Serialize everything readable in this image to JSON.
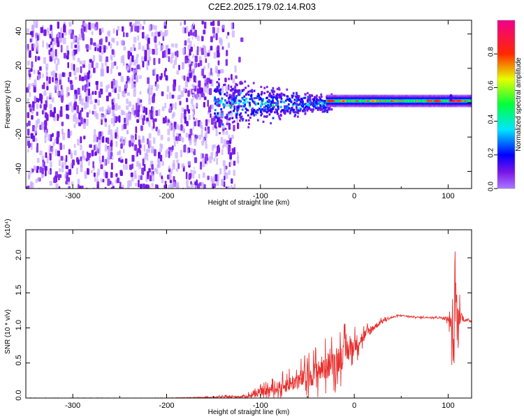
{
  "title": "C2E2.2025.179.02.14.R03",
  "chart_data": [
    {
      "type": "heatmap",
      "xlabel": "Height of straight line (km)",
      "ylabel": "Frequency (Hz)",
      "xlim": [
        -350,
        125
      ],
      "ylim": [
        -50,
        48
      ],
      "xticks": [
        -300,
        -200,
        -100,
        0,
        100
      ],
      "yticks": [
        -40,
        -20,
        0,
        20,
        40
      ],
      "colorbar": {
        "label": "Normalized spectral amplitude",
        "range": [
          0.0,
          1.0
        ],
        "ticks": [
          0.0,
          0.2,
          0.4,
          0.6,
          0.8
        ],
        "colormap": "rainbow (violet-blue-cyan-green-yellow-red-magenta)"
      }
    },
    {
      "type": "line",
      "xlabel": "Height of straight line (km)",
      "ylabel": "SNR (10 * v/v)",
      "scale_label": "(x10⁴)",
      "xlim": [
        -350,
        125
      ],
      "ylim": [
        0,
        2.4
      ],
      "xticks": [
        -300,
        -200,
        -100,
        0,
        100
      ],
      "yticks": [
        0.0,
        0.5,
        1.0,
        1.5,
        2.0
      ],
      "series": [
        {
          "color": "#e8302e",
          "x": [
            -350,
            -300,
            -250,
            -200,
            -160,
            -120,
            -110,
            -100,
            -80,
            -60,
            -40,
            -20,
            -10,
            0,
            10,
            20,
            30,
            40,
            50,
            60,
            70,
            80,
            90,
            95,
            100,
            103,
            106,
            108,
            110,
            113,
            116,
            120,
            125
          ],
          "y": [
            0.0,
            0.0,
            0.0,
            0.0,
            0.01,
            0.02,
            0.04,
            0.08,
            0.15,
            0.25,
            0.38,
            0.52,
            0.65,
            0.75,
            0.88,
            1.0,
            1.1,
            1.15,
            1.18,
            1.16,
            1.15,
            1.15,
            1.15,
            1.14,
            1.13,
            1.05,
            0.7,
            1.6,
            0.95,
            1.2,
            1.12,
            1.11,
            1.1
          ],
          "noise": [
            0.005,
            0.005,
            0.005,
            0.005,
            0.01,
            0.04,
            0.07,
            0.12,
            0.2,
            0.3,
            0.4,
            0.45,
            0.45,
            0.3,
            0.2,
            0.12,
            0.05,
            0.03,
            0.02,
            0.02,
            0.02,
            0.02,
            0.03,
            0.05,
            0.08,
            0.3,
            0.9,
            1.2,
            0.8,
            0.3,
            0.06,
            0.03,
            0.02
          ]
        }
      ]
    }
  ]
}
